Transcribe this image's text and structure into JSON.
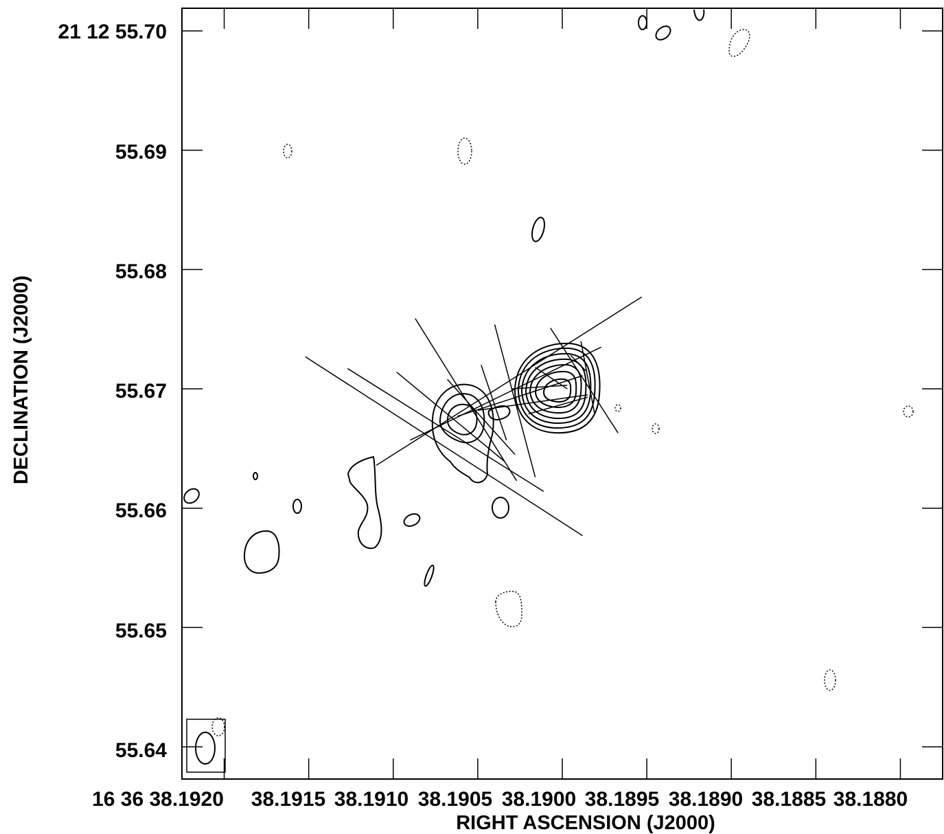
{
  "chart_data": {
    "type": "contour",
    "xlabel": "RIGHT ASCENSION (J2000)",
    "ylabel": "DECLINATION (J2000)",
    "x_unit": "16h 36m, seconds of RA",
    "y_unit": "+21d 12m, arcseconds of Dec",
    "x_ticks": [
      "16 36 38.1920",
      "38.1915",
      "38.1910",
      "38.1905",
      "38.1900",
      "38.1895",
      "38.1890",
      "38.1885",
      "38.1880"
    ],
    "y_ticks": [
      "21 12 55.70",
      "55.69",
      "55.68",
      "55.67",
      "55.66",
      "55.65",
      "55.64"
    ],
    "x_tick_values": [
      38.192,
      38.1915,
      38.191,
      38.1905,
      38.19,
      38.1895,
      38.189,
      38.1885,
      38.188
    ],
    "y_tick_values": [
      55.7,
      55.69,
      55.68,
      55.67,
      55.66,
      55.65,
      55.64
    ],
    "xlim": [
      38.19225,
      38.18775
    ],
    "ylim": [
      55.6373,
      55.7019
    ],
    "grid": false,
    "main_component": {
      "ra_sec": 38.19,
      "dec_arcsec": 55.6701,
      "n_contours": 7
    },
    "secondary_component": {
      "ra_sec": 38.19053,
      "dec_arcsec": 55.6677,
      "n_contours": 2
    },
    "polarization_vectors": [
      {
        "x1": 38.19152,
        "y1": 55.6727,
        "x2": 38.18988,
        "y2": 55.6577
      },
      {
        "x1": 38.19127,
        "y1": 55.6717,
        "x2": 38.19011,
        "y2": 55.6614
      },
      {
        "x1": 38.19098,
        "y1": 55.6714,
        "x2": 38.19034,
        "y2": 55.6639
      },
      {
        "x1": 38.19087,
        "y1": 55.6759,
        "x2": 38.19027,
        "y2": 55.6623
      },
      {
        "x1": 38.19048,
        "y1": 55.672,
        "x2": 38.19033,
        "y2": 55.6657
      },
      {
        "x1": 38.19068,
        "y1": 55.6708,
        "x2": 38.19028,
        "y2": 55.6645
      },
      {
        "x1": 38.1904,
        "y1": 55.6754,
        "x2": 38.19016,
        "y2": 55.6626
      },
      {
        "x1": 38.19007,
        "y1": 55.6751,
        "x2": 38.18967,
        "y2": 55.6663
      },
      {
        "x1": 38.18989,
        "y1": 55.674,
        "x2": 38.18981,
        "y2": 55.668
      },
      {
        "x1": 38.19016,
        "y1": 55.6718,
        "x2": 38.18997,
        "y2": 55.67
      },
      {
        "x1": 38.1911,
        "y1": 55.6636,
        "x2": 38.18953,
        "y2": 55.6777
      },
      {
        "x1": 38.1909,
        "y1": 55.6657,
        "x2": 38.18977,
        "y2": 55.6735
      },
      {
        "x1": 38.19062,
        "y1": 55.6677,
        "x2": 38.18988,
        "y2": 55.6711
      },
      {
        "x1": 38.1905,
        "y1": 55.6682,
        "x2": 38.18985,
        "y2": 55.6695
      },
      {
        "x1": 38.1903,
        "y1": 55.67,
        "x2": 38.18997,
        "y2": 55.6703
      },
      {
        "x1": 38.18995,
        "y1": 55.6728,
        "x2": 38.18986,
        "y2": 55.6715
      },
      {
        "x1": 38.1902,
        "y1": 55.6679,
        "x2": 38.18985,
        "y2": 55.6693
      }
    ],
    "beam": {
      "corner": "bottom-left",
      "shape": "ellipse",
      "elongation": "north-south"
    }
  }
}
